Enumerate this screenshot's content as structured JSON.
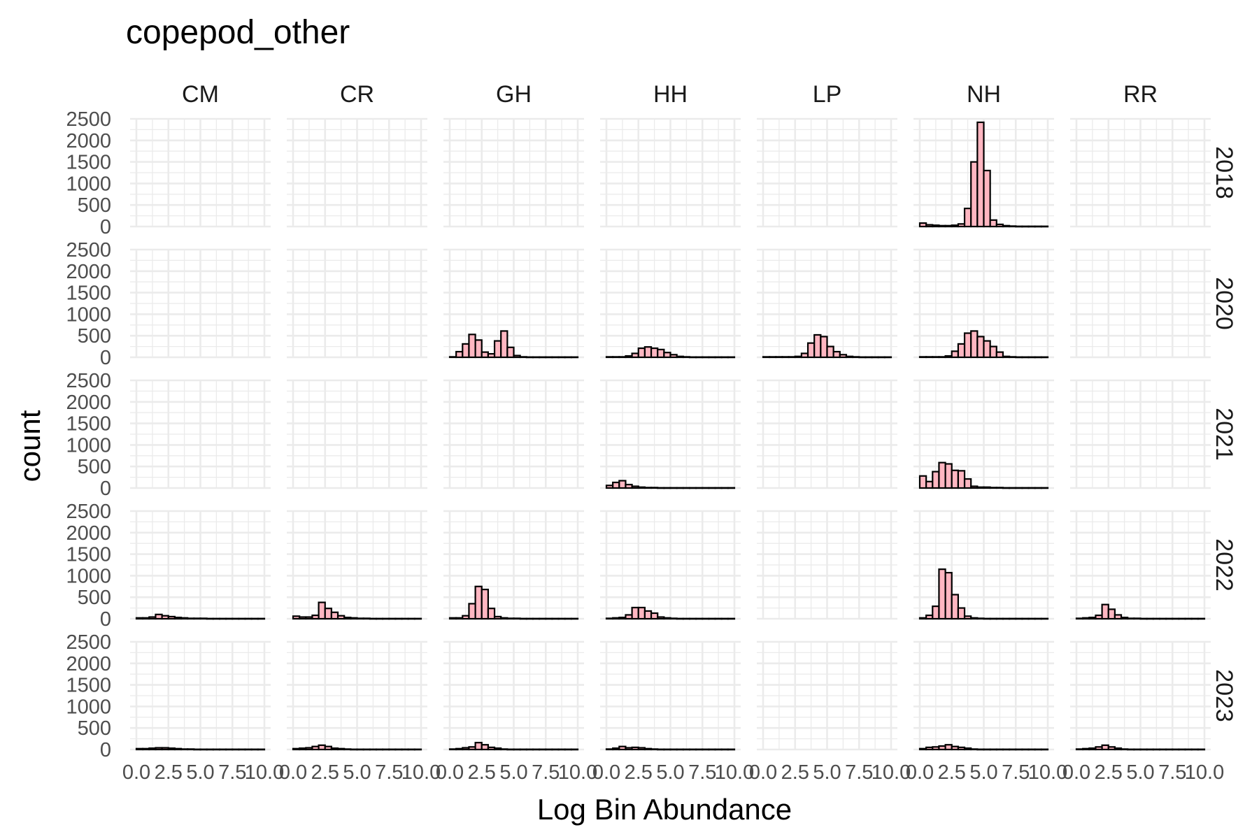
{
  "chart_data": {
    "type": "bar",
    "title": "copepod_other",
    "xlabel": "Log Bin Abundance",
    "ylabel": "count",
    "facet_columns": [
      "CM",
      "CR",
      "GH",
      "HH",
      "LP",
      "NH",
      "RR"
    ],
    "facet_rows": [
      "2018",
      "2020",
      "2021",
      "2022",
      "2023"
    ],
    "xlim": [
      0,
      10
    ],
    "ylim": [
      0,
      2500
    ],
    "x_ticks": [
      "0.0",
      "2.5",
      "5.0",
      "7.5",
      "10.0"
    ],
    "y_ticks": [
      "0",
      "500",
      "1000",
      "1500",
      "2000",
      "2500"
    ],
    "grid": true,
    "legend": "none",
    "bin_width": 0.5,
    "bin_starts": [
      0,
      0.5,
      1,
      1.5,
      2,
      2.5,
      3,
      3.5,
      4,
      4.5,
      5,
      5.5,
      6,
      6.5,
      7,
      7.5,
      8,
      8.5,
      9,
      9.5
    ],
    "colors": {
      "fill": "#ffb6c1",
      "outline": "#000000",
      "grid": "#ebebeb"
    },
    "panels": [
      {
        "row": "2018",
        "col": "NH",
        "values": [
          80,
          40,
          30,
          20,
          20,
          30,
          60,
          420,
          1500,
          2420,
          1300,
          150,
          50,
          20,
          10,
          5,
          5,
          5,
          5,
          5
        ]
      },
      {
        "row": "2020",
        "col": "GH",
        "values": [
          10,
          130,
          310,
          530,
          400,
          120,
          80,
          380,
          610,
          230,
          40,
          10,
          5,
          5,
          5,
          5,
          5,
          5,
          5,
          5
        ]
      },
      {
        "row": "2020",
        "col": "HH",
        "values": [
          10,
          10,
          10,
          30,
          90,
          210,
          240,
          210,
          180,
          110,
          60,
          20,
          10,
          5,
          5,
          5,
          5,
          5,
          5,
          5
        ]
      },
      {
        "row": "2020",
        "col": "LP",
        "values": [
          10,
          10,
          10,
          10,
          10,
          20,
          90,
          330,
          520,
          480,
          250,
          130,
          60,
          20,
          10,
          5,
          5,
          5,
          5,
          5
        ]
      },
      {
        "row": "2020",
        "col": "NH",
        "values": [
          10,
          10,
          10,
          10,
          30,
          140,
          310,
          560,
          610,
          480,
          380,
          250,
          120,
          20,
          10,
          5,
          5,
          5,
          5,
          5
        ]
      },
      {
        "row": "2021",
        "col": "HH",
        "values": [
          60,
          130,
          170,
          80,
          40,
          20,
          10,
          10,
          5,
          5,
          5,
          5,
          5,
          5,
          5,
          5,
          5,
          5,
          5,
          5
        ]
      },
      {
        "row": "2021",
        "col": "NH",
        "values": [
          280,
          150,
          380,
          590,
          560,
          410,
          400,
          210,
          40,
          20,
          20,
          10,
          10,
          5,
          5,
          5,
          5,
          5,
          5,
          5
        ]
      },
      {
        "row": "2022",
        "col": "CM",
        "values": [
          20,
          20,
          40,
          100,
          70,
          50,
          30,
          20,
          10,
          10,
          10,
          5,
          5,
          5,
          5,
          5,
          5,
          5,
          5,
          5
        ]
      },
      {
        "row": "2022",
        "col": "CR",
        "values": [
          60,
          40,
          40,
          80,
          380,
          240,
          150,
          70,
          30,
          20,
          10,
          10,
          5,
          5,
          5,
          5,
          5,
          5,
          5,
          5
        ]
      },
      {
        "row": "2022",
        "col": "GH",
        "values": [
          20,
          20,
          70,
          350,
          750,
          680,
          240,
          50,
          20,
          10,
          10,
          5,
          5,
          5,
          5,
          5,
          5,
          5,
          5,
          5
        ]
      },
      {
        "row": "2022",
        "col": "HH",
        "values": [
          10,
          20,
          30,
          90,
          260,
          260,
          180,
          130,
          40,
          20,
          10,
          5,
          5,
          5,
          5,
          5,
          5,
          5,
          5,
          5
        ]
      },
      {
        "row": "2022",
        "col": "NH",
        "values": [
          20,
          80,
          290,
          1150,
          1070,
          560,
          250,
          60,
          20,
          10,
          5,
          5,
          5,
          5,
          5,
          5,
          5,
          5,
          5,
          5
        ]
      },
      {
        "row": "2022",
        "col": "RR",
        "values": [
          10,
          20,
          30,
          80,
          330,
          220,
          90,
          30,
          10,
          10,
          5,
          5,
          5,
          5,
          5,
          5,
          5,
          5,
          5,
          5
        ]
      },
      {
        "row": "2023",
        "col": "CM",
        "values": [
          20,
          20,
          30,
          40,
          40,
          30,
          20,
          10,
          10,
          5,
          5,
          5,
          5,
          5,
          5,
          5,
          5,
          5,
          5,
          5
        ]
      },
      {
        "row": "2023",
        "col": "CR",
        "values": [
          20,
          30,
          40,
          70,
          100,
          70,
          30,
          20,
          10,
          5,
          5,
          5,
          5,
          5,
          5,
          5,
          5,
          5,
          5,
          5
        ]
      },
      {
        "row": "2023",
        "col": "GH",
        "values": [
          10,
          20,
          40,
          60,
          160,
          110,
          50,
          30,
          10,
          5,
          5,
          5,
          5,
          5,
          5,
          5,
          5,
          5,
          5,
          5
        ]
      },
      {
        "row": "2023",
        "col": "HH",
        "values": [
          10,
          30,
          70,
          40,
          50,
          40,
          20,
          10,
          5,
          5,
          5,
          5,
          5,
          5,
          5,
          5,
          5,
          5,
          5,
          5
        ]
      },
      {
        "row": "2023",
        "col": "NH",
        "values": [
          20,
          50,
          60,
          80,
          110,
          70,
          50,
          30,
          10,
          5,
          5,
          5,
          5,
          5,
          5,
          5,
          5,
          5,
          5,
          5
        ]
      },
      {
        "row": "2023",
        "col": "RR",
        "values": [
          10,
          20,
          30,
          60,
          100,
          60,
          30,
          10,
          5,
          5,
          5,
          5,
          5,
          5,
          5,
          5,
          5,
          5,
          5,
          5
        ]
      }
    ]
  }
}
